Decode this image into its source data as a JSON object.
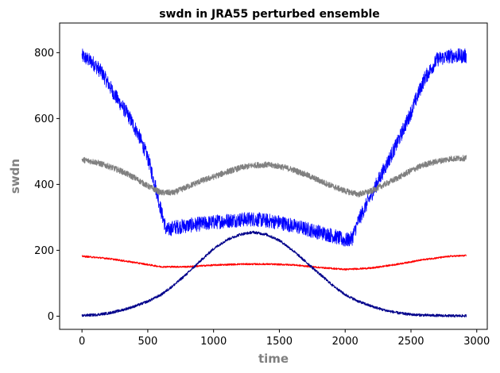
{
  "chart_data": {
    "type": "line",
    "title": "swdn in JRA55 perturbed ensemble",
    "xlabel": "time",
    "ylabel": "swdn",
    "xlim": [
      -170,
      3080
    ],
    "ylim": [
      -40,
      890
    ],
    "xticks": [
      0,
      500,
      1000,
      1500,
      2000,
      2500,
      3000
    ],
    "yticks": [
      0,
      200,
      400,
      600,
      800
    ],
    "grid": false,
    "axis_label_color": "#808080",
    "series": [
      {
        "color": "#0000ff",
        "x": [
          0,
          80,
          150,
          250,
          350,
          430,
          500,
          560,
          600,
          640,
          700,
          800,
          900,
          1000,
          1100,
          1200,
          1300,
          1400,
          1500,
          1600,
          1700,
          1800,
          1900,
          2000,
          2050,
          2100,
          2200,
          2300,
          2400,
          2500,
          2600,
          2700,
          2800,
          2920
        ],
        "y": [
          790,
          770,
          740,
          670,
          610,
          550,
          480,
          390,
          320,
          260,
          270,
          275,
          280,
          285,
          290,
          293,
          295,
          290,
          285,
          275,
          265,
          255,
          245,
          230,
          235,
          290,
          370,
          450,
          530,
          620,
          720,
          780,
          790,
          790
        ],
        "spread": 45
      },
      {
        "color": "#808080",
        "x": [
          0,
          100,
          200,
          300,
          400,
          500,
          600,
          700,
          800,
          900,
          1000,
          1100,
          1200,
          1300,
          1400,
          1500,
          1600,
          1700,
          1800,
          1900,
          2000,
          2100,
          2200,
          2300,
          2400,
          2500,
          2600,
          2700,
          2800,
          2920
        ],
        "y": [
          475,
          468,
          455,
          440,
          420,
          395,
          375,
          375,
          393,
          410,
          423,
          438,
          450,
          458,
          460,
          455,
          445,
          430,
          412,
          395,
          380,
          370,
          380,
          400,
          420,
          442,
          460,
          470,
          478,
          480
        ],
        "spread": 18
      },
      {
        "color": "#ff0000",
        "x": [
          0,
          200,
          400,
          600,
          800,
          1000,
          1200,
          1400,
          1600,
          1800,
          2000,
          2200,
          2400,
          2600,
          2800,
          2920
        ],
        "y": [
          182,
          175,
          163,
          150,
          150,
          155,
          158,
          158,
          156,
          148,
          142,
          146,
          158,
          172,
          182,
          184
        ],
        "spread": 5
      },
      {
        "color": "#00008b",
        "x": [
          0,
          100,
          200,
          300,
          400,
          500,
          600,
          700,
          800,
          900,
          1000,
          1100,
          1200,
          1300,
          1400,
          1500,
          1600,
          1700,
          1800,
          1900,
          2000,
          2100,
          2200,
          2300,
          2400,
          2500,
          2600,
          2700,
          2800,
          2920
        ],
        "y": [
          2,
          4,
          9,
          18,
          30,
          45,
          65,
          95,
          130,
          168,
          205,
          232,
          248,
          255,
          248,
          230,
          200,
          165,
          130,
          95,
          65,
          45,
          30,
          18,
          10,
          5,
          3,
          2,
          1,
          1
        ],
        "spread": 8
      }
    ]
  }
}
